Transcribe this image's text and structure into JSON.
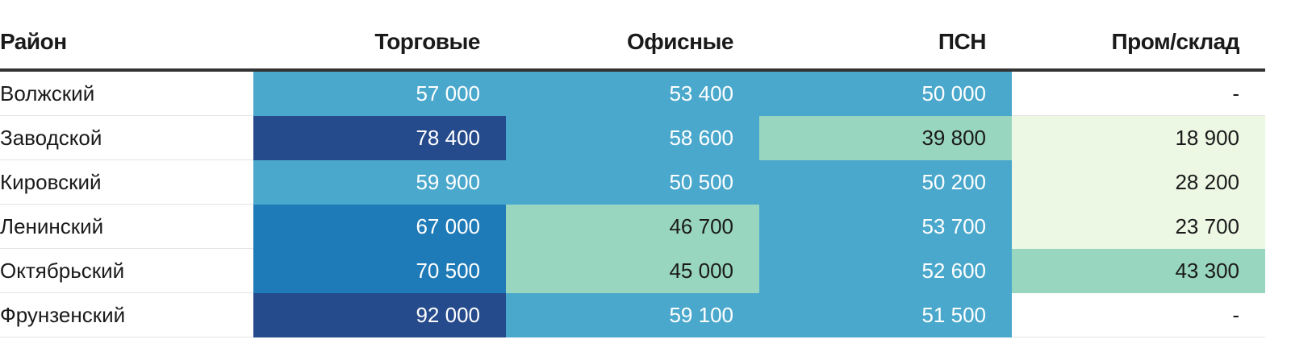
{
  "table": {
    "header": [
      "Район",
      "Торговые",
      "Офисные",
      "ПСН",
      "Пром/склад"
    ],
    "rows": [
      [
        "Волжский",
        "57 000",
        "53 400",
        "50 000",
        "-"
      ],
      [
        "Заводской",
        "78 400",
        "58 600",
        "39 800",
        "18 900"
      ],
      [
        "Кировский",
        "59 900",
        "50 500",
        "50 200",
        "28 200"
      ],
      [
        "Ленинский",
        "67 000",
        "46 700",
        "53 700",
        "23 700"
      ],
      [
        "Октябрьский",
        "70 500",
        "45 000",
        "52 600",
        "43 300"
      ],
      [
        "Фрунзенский",
        "92 000",
        "59 100",
        "51 500",
        "-"
      ]
    ],
    "cell_colors": [
      [
        null,
        "#4aa8cc",
        "#4aa8cc",
        "#4aa8cc",
        null
      ],
      [
        null,
        "#254b8c",
        "#4aa8cc",
        "#99d6c0",
        "#edf8e4"
      ],
      [
        null,
        "#4aa8cc",
        "#4aa8cc",
        "#4aa8cc",
        "#edf8e4"
      ],
      [
        null,
        "#1f7bb8",
        "#99d6c0",
        "#4aa8cc",
        "#edf8e4"
      ],
      [
        null,
        "#1f7bb8",
        "#99d6c0",
        "#4aa8cc",
        "#99d6c0"
      ],
      [
        null,
        "#254b8c",
        "#4aa8cc",
        "#4aa8cc",
        null
      ]
    ]
  }
}
